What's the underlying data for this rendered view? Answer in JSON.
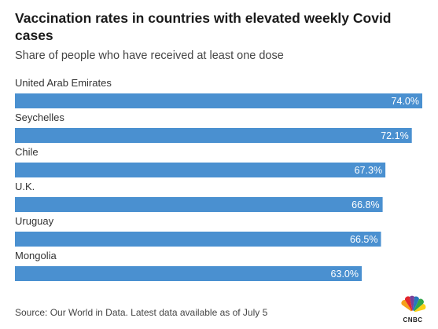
{
  "header": {
    "title": "Vaccination rates in countries with elevated weekly Covid cases",
    "subtitle": "Share of people who have received at least one dose"
  },
  "footer": {
    "source": "Source: Our World in Data. Latest data available as of July 5",
    "logo_text": "CNBC"
  },
  "colors": {
    "bar": "#4a90d0",
    "bar_label": "#ffffff",
    "category_label": "#333333"
  },
  "chart_data": {
    "type": "bar",
    "orientation": "horizontal",
    "categories": [
      "United Arab Emirates",
      "Seychelles",
      "Chile",
      "U.K.",
      "Uruguay",
      "Mongolia"
    ],
    "values": [
      74.0,
      72.1,
      67.3,
      66.8,
      66.5,
      63.0
    ],
    "value_labels": [
      "74.0%",
      "72.1%",
      "67.3%",
      "66.8%",
      "66.5%",
      "63.0%"
    ],
    "title": "Vaccination rates in countries with elevated weekly Covid cases",
    "subtitle": "Share of people who have received at least one dose",
    "xlim": [
      0,
      74
    ],
    "grid": false
  }
}
